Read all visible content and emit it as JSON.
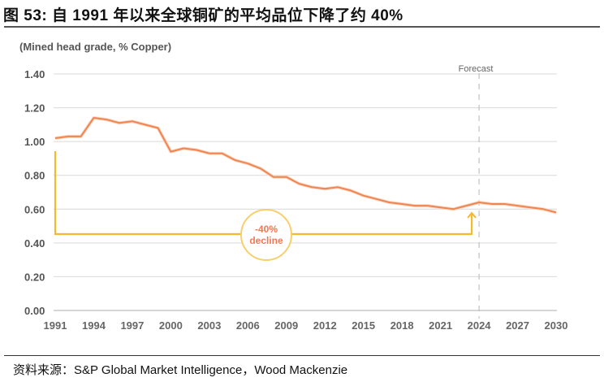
{
  "header": {
    "title": "图 53:  自 1991 年以来全球铜矿的平均品位下降了约 40%"
  },
  "footer": {
    "source": "资料来源：S&P Global Market Intelligence，Wood Mackenzie"
  },
  "colors": {
    "line": "#ef8550",
    "annotation": "#f5b82e",
    "grid": "#d9d9d9",
    "forecast_divider": "#b5b5b5"
  },
  "chart_data": {
    "type": "line",
    "title": "自 1991 年以来全球铜矿的平均品位下降了约 40%",
    "xlabel": "",
    "ylabel": "(Mined head grade, % Copper)",
    "ylim": [
      0,
      1.4
    ],
    "yticks": [
      "0.00",
      "0.20",
      "0.40",
      "0.60",
      "0.80",
      "1.00",
      "1.20",
      "1.40"
    ],
    "xticks": [
      "1991",
      "1994",
      "1997",
      "2000",
      "2003",
      "2006",
      "2009",
      "2012",
      "2015",
      "2018",
      "2021",
      "2024",
      "2027",
      "2030"
    ],
    "grid": true,
    "x": [
      1991,
      1992,
      1993,
      1994,
      1995,
      1996,
      1997,
      1998,
      1999,
      2000,
      2001,
      2002,
      2003,
      2004,
      2005,
      2006,
      2007,
      2008,
      2009,
      2010,
      2011,
      2012,
      2013,
      2014,
      2015,
      2016,
      2017,
      2018,
      2019,
      2020,
      2021,
      2022,
      2023,
      2024,
      2025,
      2026,
      2027,
      2028,
      2029,
      2030
    ],
    "series": [
      {
        "name": "Mined head grade (% Copper)",
        "values": [
          1.02,
          1.03,
          1.03,
          1.14,
          1.13,
          1.11,
          1.12,
          1.1,
          1.08,
          0.94,
          0.96,
          0.95,
          0.93,
          0.93,
          0.89,
          0.87,
          0.84,
          0.79,
          0.79,
          0.75,
          0.73,
          0.72,
          0.73,
          0.71,
          0.68,
          0.66,
          0.64,
          0.63,
          0.62,
          0.62,
          0.61,
          0.6,
          0.62,
          0.64,
          0.63,
          0.63,
          0.62,
          0.61,
          0.6,
          0.58
        ]
      }
    ],
    "annotations": [
      {
        "type": "vertical-divider",
        "x": 2024,
        "label": "Forecast"
      },
      {
        "type": "bracket-arrow",
        "from_x": 1991,
        "to_x": 2024,
        "label_line1": "-40%",
        "label_line2": "decline"
      }
    ]
  }
}
